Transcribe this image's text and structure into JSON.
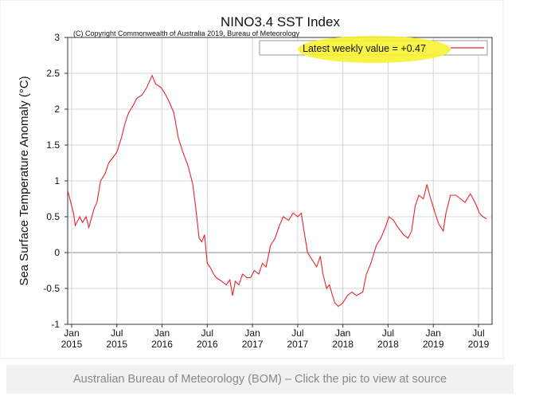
{
  "chart_data": {
    "type": "line",
    "title": "NINO3.4 SST Index",
    "subtitle": "(C) Copyright Commonwealth of Australia 2019, Bureau of Meteorology",
    "y_label": "Sea Surface Temperature Anomaly (°C)",
    "x": [
      2014.96,
      2015.02,
      2015.04,
      2015.09,
      2015.12,
      2015.16,
      2015.19,
      2015.25,
      2015.28,
      2015.32,
      2015.37,
      2015.41,
      2015.47,
      2015.5,
      2015.55,
      2015.59,
      2015.63,
      2015.68,
      2015.72,
      2015.78,
      2015.83,
      2015.89,
      2015.93,
      2015.99,
      2016.04,
      2016.08,
      2016.13,
      2016.18,
      2016.23,
      2016.29,
      2016.34,
      2016.37,
      2016.41,
      2016.44,
      2016.47,
      2016.5,
      2016.53,
      2016.57,
      2016.6,
      2016.66,
      2016.71,
      2016.75,
      2016.78,
      2016.81,
      2016.85,
      2016.89,
      2016.94,
      2016.98,
      2017.02,
      2017.07,
      2017.11,
      2017.15,
      2017.2,
      2017.25,
      2017.29,
      2017.34,
      2017.4,
      2017.45,
      2017.5,
      2017.54,
      2017.57,
      2017.61,
      2017.66,
      2017.71,
      2017.75,
      2017.78,
      2017.82,
      2017.85,
      2017.91,
      2017.95,
      2018.0,
      2018.05,
      2018.1,
      2018.15,
      2018.22,
      2018.26,
      2018.31,
      2018.37,
      2018.42,
      2018.47,
      2018.51,
      2018.56,
      2018.61,
      2018.67,
      2018.72,
      2018.76,
      2018.8,
      2018.84,
      2018.89,
      2018.93,
      2018.96,
      2019.02,
      2019.06,
      2019.11,
      2019.14,
      2019.19,
      2019.25,
      2019.3,
      2019.35,
      2019.41,
      2019.44,
      2019.48,
      2019.51,
      2019.55,
      2019.59
    ],
    "series": [
      {
        "name": "Latest weekly value = +0.47",
        "color": "#e8242a",
        "values": [
          0.85,
          0.55,
          0.38,
          0.5,
          0.42,
          0.5,
          0.35,
          0.62,
          0.7,
          1.0,
          1.1,
          1.25,
          1.35,
          1.4,
          1.6,
          1.8,
          1.95,
          2.05,
          2.15,
          2.2,
          2.3,
          2.47,
          2.35,
          2.3,
          2.2,
          2.1,
          1.95,
          1.6,
          1.4,
          1.2,
          0.95,
          0.65,
          0.2,
          0.15,
          0.25,
          -0.15,
          -0.2,
          -0.3,
          -0.35,
          -0.4,
          -0.45,
          -0.38,
          -0.6,
          -0.4,
          -0.45,
          -0.3,
          -0.35,
          -0.35,
          -0.25,
          -0.3,
          -0.15,
          -0.2,
          0.1,
          0.2,
          0.35,
          0.5,
          0.45,
          0.55,
          0.5,
          0.55,
          0.3,
          0.0,
          -0.1,
          -0.2,
          -0.05,
          -0.3,
          -0.5,
          -0.45,
          -0.7,
          -0.75,
          -0.7,
          -0.6,
          -0.55,
          -0.6,
          -0.55,
          -0.3,
          -0.15,
          0.1,
          0.2,
          0.35,
          0.5,
          0.45,
          0.35,
          0.25,
          0.2,
          0.3,
          0.65,
          0.8,
          0.75,
          0.95,
          0.8,
          0.55,
          0.4,
          0.3,
          0.55,
          0.8,
          0.8,
          0.75,
          0.7,
          0.82,
          0.75,
          0.65,
          0.55,
          0.5,
          0.47
        ]
      }
    ],
    "xlim": [
      2014.956,
      2019.65
    ],
    "ylim": [
      -1,
      3
    ],
    "xticks": [
      {
        "value": 2015.0,
        "label": "Jan 2015"
      },
      {
        "value": 2015.5,
        "label": "Jul 2015"
      },
      {
        "value": 2016.0,
        "label": "Jan 2016"
      },
      {
        "value": 2016.5,
        "label": "Jul 2016"
      },
      {
        "value": 2017.0,
        "label": "Jan 2017"
      },
      {
        "value": 2017.5,
        "label": "Jul 2017"
      },
      {
        "value": 2018.0,
        "label": "Jan 2018"
      },
      {
        "value": 2018.5,
        "label": "Jul 2018"
      },
      {
        "value": 2019.0,
        "label": "Jan 2019"
      },
      {
        "value": 2019.5,
        "label": "Jul 2019"
      }
    ],
    "yticks": [
      -1,
      -0.5,
      0,
      0.5,
      1,
      1.5,
      2,
      2.5,
      3
    ],
    "grid": true,
    "legend": "upper right",
    "highlight_color": "#f7f230"
  },
  "caption": "Australian Bureau of Meteorology (BOM) – Click the pic to view at source"
}
